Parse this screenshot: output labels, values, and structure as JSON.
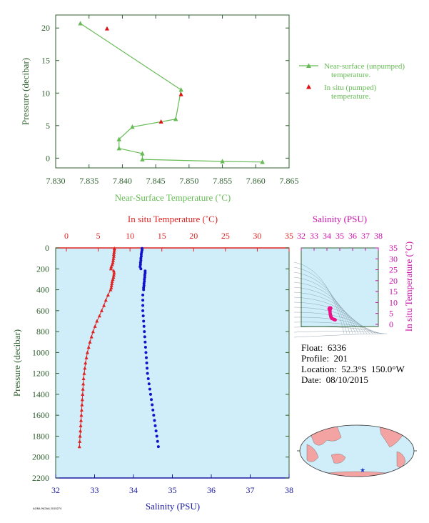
{
  "colors": {
    "axis_dark": "#2f5f2f",
    "near_surface": "#66bb55",
    "insitu_point": "#dd1111",
    "temperature": "#dd2222",
    "salinity": "#1111cc",
    "salinity_axis": "#1a1aa0",
    "ts_accent": "#cc11aa",
    "ts_point": "#ee1188",
    "panel_fill": "#d0eefa",
    "land": "#f4a3a3",
    "ocean": "#d0eefa",
    "float_marker": "#1133cc"
  },
  "float_info": {
    "float_line": "Float:  6336",
    "profile_line": "Profile:  201",
    "location_line": "Location:  52.3°S  150.0°W",
    "date_line": "Date:  08/10/2015"
  },
  "footer_tiny_text": "AOML/NOAA 2015274",
  "chart_data": [
    {
      "type": "line",
      "name": "near-surface",
      "xlabel": "Near-Surface Temperature (˚C)",
      "ylabel": "Pressure (decibar)",
      "xlim": [
        7.83,
        7.865
      ],
      "ylim": [
        22,
        -1.5
      ],
      "xticks": [
        "7.830",
        "7.835",
        "7.840",
        "7.845",
        "7.850",
        "7.855",
        "7.860",
        "7.865"
      ],
      "yticks": [
        "0",
        "5",
        "10",
        "15",
        "20"
      ],
      "legend": [
        "Near-surface (unpumped) temperature.",
        "In situ (pumped) temperature."
      ],
      "series": [
        {
          "name": "Near-surface (unpumped) temperature.",
          "points": [
            [
              7.861,
              -0.6
            ],
            [
              7.855,
              -0.5
            ],
            [
              7.843,
              -0.2
            ],
            [
              7.843,
              0.7
            ],
            [
              7.8395,
              1.5
            ],
            [
              7.8395,
              2.9
            ],
            [
              7.8415,
              4.8
            ],
            [
              7.848,
              6.0
            ],
            [
              7.8488,
              10.5
            ],
            [
              7.8337,
              20.7
            ]
          ]
        },
        {
          "name": "In situ (pumped) temperature.",
          "points": [
            [
              7.8458,
              5.6
            ],
            [
              7.8488,
              9.8
            ],
            [
              7.8377,
              19.9
            ]
          ]
        }
      ]
    },
    {
      "type": "line",
      "name": "profile",
      "ylabel": "Pressure (decibar)",
      "temp_label": "In situ Temperature (˚C)",
      "sal_label": "Salinity (PSU)",
      "temp_lim": [
        0,
        35
      ],
      "sal_lim": [
        32,
        38
      ],
      "ylim": [
        0,
        2200
      ],
      "temp_ticks": [
        "0",
        "5",
        "10",
        "15",
        "20",
        "25",
        "30",
        "35"
      ],
      "sal_ticks": [
        "32",
        "33",
        "34",
        "35",
        "36",
        "37",
        "38"
      ],
      "pressure_ticks": [
        "0",
        "200",
        "400",
        "600",
        "800",
        "1000",
        "1200",
        "1400",
        "1600",
        "1800",
        "2000",
        "2200"
      ],
      "temperature": {
        "pressure": [
          5,
          20,
          40,
          60,
          80,
          100,
          120,
          140,
          160,
          180,
          200,
          220,
          240,
          260,
          280,
          300,
          320,
          340,
          360,
          380,
          400,
          450,
          500,
          550,
          600,
          650,
          700,
          750,
          800,
          850,
          900,
          950,
          1000,
          1050,
          1100,
          1150,
          1200,
          1250,
          1300,
          1350,
          1400,
          1450,
          1500,
          1550,
          1600,
          1650,
          1700,
          1750,
          1800,
          1850,
          1900
        ],
        "values": [
          7.55,
          7.55,
          7.5,
          7.45,
          7.45,
          7.4,
          7.35,
          7.3,
          7.2,
          7.05,
          7.0,
          7.45,
          7.5,
          7.45,
          7.4,
          7.3,
          7.2,
          7.15,
          7.1,
          7.05,
          6.95,
          6.55,
          6.2,
          5.9,
          5.55,
          5.2,
          4.8,
          4.5,
          4.2,
          3.95,
          3.7,
          3.5,
          3.3,
          3.15,
          3.0,
          2.9,
          2.8,
          2.7,
          2.65,
          2.6,
          2.55,
          2.5,
          2.45,
          2.4,
          2.35,
          2.3,
          2.25,
          2.2,
          2.15,
          2.1,
          2.05
        ]
      },
      "salinity": {
        "pressure": [
          5,
          20,
          40,
          60,
          80,
          100,
          120,
          140,
          160,
          180,
          200,
          220,
          240,
          260,
          280,
          300,
          320,
          340,
          360,
          380,
          400,
          450,
          500,
          550,
          600,
          650,
          700,
          750,
          800,
          850,
          900,
          950,
          1000,
          1050,
          1100,
          1150,
          1200,
          1250,
          1300,
          1350,
          1400,
          1450,
          1500,
          1550,
          1600,
          1650,
          1700,
          1750,
          1800,
          1850,
          1900
        ],
        "values": [
          34.22,
          34.22,
          34.21,
          34.2,
          34.2,
          34.19,
          34.19,
          34.18,
          34.18,
          34.17,
          34.19,
          34.3,
          34.3,
          34.29,
          34.29,
          34.28,
          34.28,
          34.27,
          34.27,
          34.26,
          34.26,
          34.24,
          34.24,
          34.24,
          34.24,
          34.25,
          34.26,
          34.27,
          34.28,
          34.29,
          34.3,
          34.31,
          34.32,
          34.33,
          34.34,
          34.35,
          34.36,
          34.38,
          34.4,
          34.42,
          34.44,
          34.46,
          34.48,
          34.5,
          34.52,
          34.54,
          34.56,
          34.58,
          34.6,
          34.62,
          34.64
        ]
      }
    },
    {
      "type": "scatter",
      "name": "ts-diagram",
      "xlabel": "Salinity (PSU)",
      "ylabel": "In situ Temperature (˚C)",
      "xlim": [
        32,
        38
      ],
      "ylim": [
        -1,
        35
      ],
      "xticks": [
        "32",
        "33",
        "34",
        "35",
        "36",
        "37",
        "38"
      ],
      "yticks": [
        "0",
        "5",
        "10",
        "15",
        "20",
        "25",
        "30",
        "35"
      ],
      "points": [
        [
          34.22,
          7.55
        ],
        [
          34.2,
          7.45
        ],
        [
          34.18,
          7.2
        ],
        [
          34.17,
          7.0
        ],
        [
          34.3,
          7.45
        ],
        [
          34.27,
          7.1
        ],
        [
          34.26,
          6.95
        ],
        [
          34.24,
          6.2
        ],
        [
          34.24,
          5.55
        ],
        [
          34.26,
          4.8
        ],
        [
          34.28,
          4.2
        ],
        [
          34.3,
          3.7
        ],
        [
          34.32,
          3.3
        ],
        [
          34.36,
          2.8
        ],
        [
          34.44,
          2.55
        ],
        [
          34.52,
          2.35
        ],
        [
          34.6,
          2.15
        ],
        [
          34.64,
          2.05
        ]
      ]
    },
    {
      "type": "map",
      "name": "location-map",
      "float_location": {
        "lat": -52.3,
        "lon": -150.0
      }
    }
  ]
}
